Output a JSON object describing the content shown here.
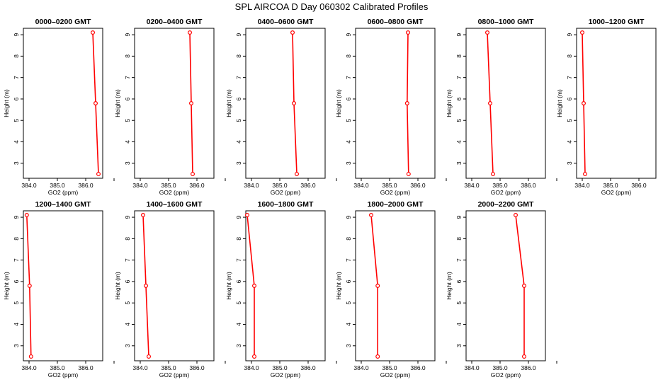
{
  "title": "SPL AIRCOA D  Day 060302  Calibrated Profiles",
  "colors": {
    "line": "#ff0000",
    "axis": "#000000"
  },
  "chart_data": [
    {
      "type": "line",
      "title": "0000–0200 GMT",
      "xlabel": "GO2 (ppm)",
      "ylabel": "Height (m)",
      "xlim": [
        383.8,
        386.6
      ],
      "ylim": [
        2.3,
        9.3
      ],
      "xticks": [
        "384.0",
        "385.0",
        "386.0"
      ],
      "yticks": [
        "3",
        "4",
        "5",
        "6",
        "7",
        "8",
        "9"
      ],
      "x": [
        386.25,
        386.35,
        386.45
      ],
      "y": [
        9.1,
        5.8,
        2.5
      ]
    },
    {
      "type": "line",
      "title": "0200–0400 GMT",
      "xlabel": "GO2 (ppm)",
      "ylabel": "Height (m)",
      "xlim": [
        383.8,
        386.6
      ],
      "ylim": [
        2.3,
        9.3
      ],
      "xticks": [
        "384.0",
        "385.0",
        "386.0"
      ],
      "yticks": [
        "3",
        "4",
        "5",
        "6",
        "7",
        "8",
        "9"
      ],
      "x": [
        385.75,
        385.8,
        385.85
      ],
      "y": [
        9.1,
        5.8,
        2.5
      ]
    },
    {
      "type": "line",
      "title": "0400–0600 GMT",
      "xlabel": "GO2 (ppm)",
      "ylabel": "Height (m)",
      "xlim": [
        383.8,
        386.6
      ],
      "ylim": [
        2.3,
        9.3
      ],
      "xticks": [
        "384.0",
        "385.0",
        "386.0"
      ],
      "yticks": [
        "3",
        "4",
        "5",
        "6",
        "7",
        "8",
        "9"
      ],
      "x": [
        385.45,
        385.5,
        385.6
      ],
      "y": [
        9.1,
        5.8,
        2.5
      ]
    },
    {
      "type": "line",
      "title": "0600–0800 GMT",
      "xlabel": "GO2 (ppm)",
      "ylabel": "Height (m)",
      "xlim": [
        383.8,
        386.6
      ],
      "ylim": [
        2.3,
        9.3
      ],
      "xticks": [
        "384.0",
        "385.0",
        "386.0"
      ],
      "yticks": [
        "3",
        "4",
        "5",
        "6",
        "7",
        "8",
        "9"
      ],
      "x": [
        385.65,
        385.62,
        385.67
      ],
      "y": [
        9.1,
        5.8,
        2.5
      ]
    },
    {
      "type": "line",
      "title": "0800–1000 GMT",
      "xlabel": "GO2 (ppm)",
      "ylabel": "Height (m)",
      "xlim": [
        383.8,
        386.6
      ],
      "ylim": [
        2.3,
        9.3
      ],
      "xticks": [
        "384.0",
        "385.0",
        "386.0"
      ],
      "yticks": [
        "3",
        "4",
        "5",
        "6",
        "7",
        "8",
        "9"
      ],
      "x": [
        384.55,
        384.65,
        384.75
      ],
      "y": [
        9.1,
        5.8,
        2.5
      ]
    },
    {
      "type": "line",
      "title": "1000–1200 GMT",
      "xlabel": "GO2 (ppm)",
      "ylabel": "Height (m)",
      "xlim": [
        383.8,
        386.6
      ],
      "ylim": [
        2.3,
        9.3
      ],
      "xticks": [
        "384.0",
        "385.0",
        "386.0"
      ],
      "yticks": [
        "3",
        "4",
        "5",
        "6",
        "7",
        "8",
        "9"
      ],
      "x": [
        384.0,
        384.05,
        384.1
      ],
      "y": [
        9.1,
        5.8,
        2.5
      ]
    },
    {
      "type": "line",
      "title": "1200–1400 GMT",
      "xlabel": "GO2 (ppm)",
      "ylabel": "Height (m)",
      "xlim": [
        383.8,
        386.6
      ],
      "ylim": [
        2.3,
        9.3
      ],
      "xticks": [
        "384.0",
        "385.0",
        "386.0"
      ],
      "yticks": [
        "3",
        "4",
        "5",
        "6",
        "7",
        "8",
        "9"
      ],
      "x": [
        383.92,
        384.02,
        384.07
      ],
      "y": [
        9.1,
        5.8,
        2.5
      ]
    },
    {
      "type": "line",
      "title": "1400–1600 GMT",
      "xlabel": "GO2 (ppm)",
      "ylabel": "Height (m)",
      "xlim": [
        383.8,
        386.6
      ],
      "ylim": [
        2.3,
        9.3
      ],
      "xticks": [
        "384.0",
        "385.0",
        "386.0"
      ],
      "yticks": [
        "3",
        "4",
        "5",
        "6",
        "7",
        "8",
        "9"
      ],
      "x": [
        384.1,
        384.2,
        384.3
      ],
      "y": [
        9.1,
        5.8,
        2.5
      ]
    },
    {
      "type": "line",
      "title": "1600–1800 GMT",
      "xlabel": "GO2 (ppm)",
      "ylabel": "Height (m)",
      "xlim": [
        383.8,
        386.6
      ],
      "ylim": [
        2.3,
        9.3
      ],
      "xticks": [
        "384.0",
        "385.0",
        "386.0"
      ],
      "yticks": [
        "3",
        "4",
        "5",
        "6",
        "7",
        "8",
        "9"
      ],
      "x": [
        383.85,
        384.1,
        384.1
      ],
      "y": [
        9.1,
        5.8,
        2.5
      ]
    },
    {
      "type": "line",
      "title": "1800–2000 GMT",
      "xlabel": "GO2 (ppm)",
      "ylabel": "Height (m)",
      "xlim": [
        383.8,
        386.6
      ],
      "ylim": [
        2.3,
        9.3
      ],
      "xticks": [
        "384.0",
        "385.0",
        "386.0"
      ],
      "yticks": [
        "3",
        "4",
        "5",
        "6",
        "7",
        "8",
        "9"
      ],
      "x": [
        384.35,
        384.58,
        384.58
      ],
      "y": [
        9.1,
        5.8,
        2.5
      ]
    },
    {
      "type": "line",
      "title": "2000–2200 GMT",
      "xlabel": "GO2 (ppm)",
      "ylabel": "Height (m)",
      "xlim": [
        383.8,
        386.6
      ],
      "ylim": [
        2.3,
        9.3
      ],
      "xticks": [
        "384.0",
        "385.0",
        "386.0"
      ],
      "yticks": [
        "3",
        "4",
        "5",
        "6",
        "7",
        "8",
        "9"
      ],
      "x": [
        385.55,
        385.85,
        385.85
      ],
      "y": [
        9.1,
        5.8,
        2.5
      ]
    }
  ]
}
